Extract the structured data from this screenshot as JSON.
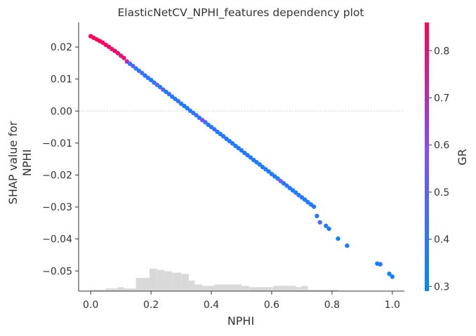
{
  "chart_data": {
    "type": "scatter",
    "title": "ElasticNetCV_NPHI_features dependency plot",
    "xlabel": "NPHI",
    "ylabel_lines": [
      "SHAP value for",
      "NPHI"
    ],
    "xlim": [
      -0.04,
      1.04
    ],
    "ylim": [
      -0.0563,
      0.0277
    ],
    "xticks": [
      0.0,
      0.2,
      0.4,
      0.6,
      0.8,
      1.0
    ],
    "xtick_labels": [
      "0.0",
      "0.2",
      "0.4",
      "0.6",
      "0.8",
      "1.0"
    ],
    "yticks": [
      0.02,
      0.01,
      0.0,
      -0.01,
      -0.02,
      -0.03,
      -0.04,
      -0.05
    ],
    "ytick_labels": [
      "0.02",
      "0.01",
      "0.00",
      "−0.01",
      "−0.02",
      "−0.03",
      "−0.04",
      "−0.05"
    ],
    "zero_line": true,
    "colorbar": {
      "label": "GR",
      "range": [
        0.29,
        0.86
      ],
      "ticks": [
        0.3,
        0.4,
        0.5,
        0.6,
        0.7,
        0.8
      ],
      "tick_labels": [
        "0.3",
        "0.4",
        "0.5",
        "0.6",
        "0.7",
        "0.8"
      ],
      "color_low": "#008afb",
      "color_mid": "#7c52ff",
      "color_high": "#ff0053"
    },
    "histogram": {
      "color": "#d9d9d9",
      "bins": [
        {
          "x0": 0.0,
          "x1": 0.05,
          "count": 1
        },
        {
          "x0": 0.05,
          "x1": 0.09,
          "count": 2
        },
        {
          "x0": 0.09,
          "x1": 0.11,
          "count": 3
        },
        {
          "x0": 0.11,
          "x1": 0.15,
          "count": 2
        },
        {
          "x0": 0.15,
          "x1": 0.195,
          "count": 10
        },
        {
          "x0": 0.195,
          "x1": 0.22,
          "count": 17
        },
        {
          "x0": 0.22,
          "x1": 0.245,
          "count": 16
        },
        {
          "x0": 0.245,
          "x1": 0.27,
          "count": 15
        },
        {
          "x0": 0.27,
          "x1": 0.3,
          "count": 14
        },
        {
          "x0": 0.3,
          "x1": 0.325,
          "count": 13
        },
        {
          "x0": 0.325,
          "x1": 0.345,
          "count": 8
        },
        {
          "x0": 0.345,
          "x1": 0.37,
          "count": 5
        },
        {
          "x0": 0.37,
          "x1": 0.41,
          "count": 4
        },
        {
          "x0": 0.41,
          "x1": 0.5,
          "count": 5
        },
        {
          "x0": 0.5,
          "x1": 0.525,
          "count": 4
        },
        {
          "x0": 0.525,
          "x1": 0.605,
          "count": 3
        },
        {
          "x0": 0.605,
          "x1": 0.68,
          "count": 4
        },
        {
          "x0": 0.68,
          "x1": 0.7,
          "count": 3
        },
        {
          "x0": 0.7,
          "x1": 0.72,
          "count": 4
        },
        {
          "x0": 0.72,
          "x1": 0.75,
          "count": 1
        },
        {
          "x0": 0.75,
          "x1": 0.78,
          "count": 1
        },
        {
          "x0": 0.78,
          "x1": 0.82,
          "count": 1
        }
      ]
    },
    "series": [
      {
        "points": [
          {
            "x": 0.0,
            "y": 0.0234,
            "c": 0.85
          },
          {
            "x": 0.01,
            "y": 0.0229,
            "c": 0.85
          },
          {
            "x": 0.02,
            "y": 0.0224,
            "c": 0.84
          },
          {
            "x": 0.03,
            "y": 0.0219,
            "c": 0.84
          },
          {
            "x": 0.04,
            "y": 0.0214,
            "c": 0.83
          },
          {
            "x": 0.05,
            "y": 0.0207,
            "c": 0.84
          },
          {
            "x": 0.06,
            "y": 0.0201,
            "c": 0.83
          },
          {
            "x": 0.07,
            "y": 0.0194,
            "c": 0.82
          },
          {
            "x": 0.08,
            "y": 0.0188,
            "c": 0.83
          },
          {
            "x": 0.09,
            "y": 0.0181,
            "c": 0.8
          },
          {
            "x": 0.1,
            "y": 0.0173,
            "c": 0.78
          },
          {
            "x": 0.11,
            "y": 0.0166,
            "c": 0.82
          },
          {
            "x": 0.12,
            "y": 0.0155,
            "c": 0.72
          },
          {
            "x": 0.13,
            "y": 0.0148,
            "c": 0.42
          },
          {
            "x": 0.14,
            "y": 0.0141,
            "c": 0.5
          },
          {
            "x": 0.15,
            "y": 0.0133,
            "c": 0.4
          },
          {
            "x": 0.16,
            "y": 0.0126,
            "c": 0.38
          },
          {
            "x": 0.17,
            "y": 0.0119,
            "c": 0.45
          },
          {
            "x": 0.18,
            "y": 0.0111,
            "c": 0.36
          },
          {
            "x": 0.19,
            "y": 0.0104,
            "c": 0.42
          },
          {
            "x": 0.2,
            "y": 0.0097,
            "c": 0.35
          },
          {
            "x": 0.21,
            "y": 0.0089,
            "c": 0.4
          },
          {
            "x": 0.22,
            "y": 0.0082,
            "c": 0.48
          },
          {
            "x": 0.23,
            "y": 0.0075,
            "c": 0.37
          },
          {
            "x": 0.24,
            "y": 0.0067,
            "c": 0.52
          },
          {
            "x": 0.25,
            "y": 0.006,
            "c": 0.34
          },
          {
            "x": 0.26,
            "y": 0.0053,
            "c": 0.44
          },
          {
            "x": 0.27,
            "y": 0.0045,
            "c": 0.36
          },
          {
            "x": 0.28,
            "y": 0.0038,
            "c": 0.39
          },
          {
            "x": 0.29,
            "y": 0.0031,
            "c": 0.41
          },
          {
            "x": 0.3,
            "y": 0.0023,
            "c": 0.36
          },
          {
            "x": 0.31,
            "y": 0.0016,
            "c": 0.37
          },
          {
            "x": 0.32,
            "y": 0.0009,
            "c": 0.35
          },
          {
            "x": 0.33,
            "y": 0.0001,
            "c": 0.36
          },
          {
            "x": 0.34,
            "y": -0.0006,
            "c": 0.38
          },
          {
            "x": 0.35,
            "y": -0.0013,
            "c": 0.45
          },
          {
            "x": 0.36,
            "y": -0.0021,
            "c": 0.37
          },
          {
            "x": 0.37,
            "y": -0.0028,
            "c": 0.6
          },
          {
            "x": 0.38,
            "y": -0.0035,
            "c": 0.42
          },
          {
            "x": 0.39,
            "y": -0.0043,
            "c": 0.36
          },
          {
            "x": 0.4,
            "y": -0.005,
            "c": 0.38
          },
          {
            "x": 0.41,
            "y": -0.0057,
            "c": 0.4
          },
          {
            "x": 0.42,
            "y": -0.0065,
            "c": 0.37
          },
          {
            "x": 0.43,
            "y": -0.0072,
            "c": 0.35
          },
          {
            "x": 0.44,
            "y": -0.0079,
            "c": 0.39
          },
          {
            "x": 0.45,
            "y": -0.0087,
            "c": 0.36
          },
          {
            "x": 0.46,
            "y": -0.0094,
            "c": 0.38
          },
          {
            "x": 0.47,
            "y": -0.0101,
            "c": 0.37
          },
          {
            "x": 0.48,
            "y": -0.0109,
            "c": 0.36
          },
          {
            "x": 0.49,
            "y": -0.0116,
            "c": 0.35
          },
          {
            "x": 0.5,
            "y": -0.0123,
            "c": 0.37
          },
          {
            "x": 0.51,
            "y": -0.0131,
            "c": 0.36
          },
          {
            "x": 0.52,
            "y": -0.0138,
            "c": 0.38
          },
          {
            "x": 0.53,
            "y": -0.0145,
            "c": 0.35
          },
          {
            "x": 0.54,
            "y": -0.0153,
            "c": 0.36
          },
          {
            "x": 0.55,
            "y": -0.016,
            "c": 0.37
          },
          {
            "x": 0.56,
            "y": -0.0167,
            "c": 0.34
          },
          {
            "x": 0.57,
            "y": -0.0175,
            "c": 0.35
          },
          {
            "x": 0.58,
            "y": -0.0182,
            "c": 0.37
          },
          {
            "x": 0.59,
            "y": -0.0189,
            "c": 0.36
          },
          {
            "x": 0.6,
            "y": -0.0197,
            "c": 0.38
          },
          {
            "x": 0.61,
            "y": -0.0204,
            "c": 0.35
          },
          {
            "x": 0.62,
            "y": -0.0211,
            "c": 0.37
          },
          {
            "x": 0.63,
            "y": -0.0219,
            "c": 0.55
          },
          {
            "x": 0.64,
            "y": -0.0226,
            "c": 0.36
          },
          {
            "x": 0.65,
            "y": -0.0233,
            "c": 0.38
          },
          {
            "x": 0.66,
            "y": -0.0241,
            "c": 0.37
          },
          {
            "x": 0.67,
            "y": -0.0248,
            "c": 0.35
          },
          {
            "x": 0.68,
            "y": -0.0255,
            "c": 0.36
          },
          {
            "x": 0.69,
            "y": -0.0263,
            "c": 0.38
          },
          {
            "x": 0.7,
            "y": -0.027,
            "c": 0.37
          },
          {
            "x": 0.71,
            "y": -0.0277,
            "c": 0.36
          },
          {
            "x": 0.72,
            "y": -0.0285,
            "c": 0.35
          },
          {
            "x": 0.73,
            "y": -0.0292,
            "c": 0.37
          },
          {
            "x": 0.74,
            "y": -0.0299,
            "c": 0.38
          },
          {
            "x": 0.75,
            "y": -0.0328,
            "c": 0.38
          },
          {
            "x": 0.76,
            "y": -0.0348,
            "c": 0.47
          },
          {
            "x": 0.78,
            "y": -0.0359,
            "c": 0.37
          },
          {
            "x": 0.79,
            "y": -0.0368,
            "c": 0.36
          },
          {
            "x": 0.82,
            "y": -0.0399,
            "c": 0.33
          },
          {
            "x": 0.85,
            "y": -0.0421,
            "c": 0.35
          },
          {
            "x": 0.95,
            "y": -0.0477,
            "c": 0.35
          },
          {
            "x": 0.96,
            "y": -0.0479,
            "c": 0.36
          },
          {
            "x": 0.99,
            "y": -0.0509,
            "c": 0.33
          },
          {
            "x": 1.0,
            "y": -0.0518,
            "c": 0.34
          }
        ]
      }
    ]
  }
}
